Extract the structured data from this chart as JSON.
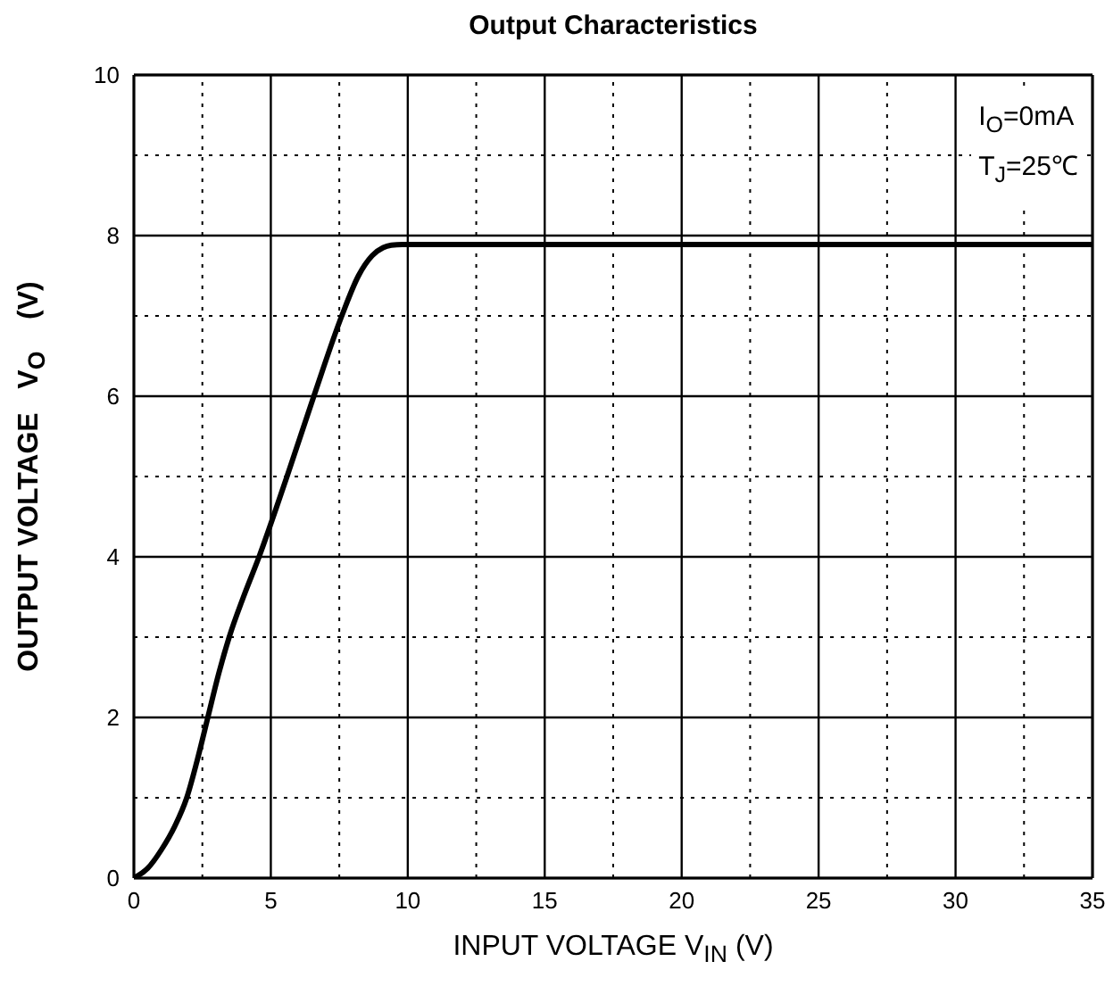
{
  "chart_data": {
    "type": "line",
    "title": "Output  Characteristics",
    "xlabel": "INPUT VOLTAGE    V$_{IN}$    (V)",
    "ylabel": "OUTPUT VOLTAGE   V$_{O}$    (V)",
    "annotations": [
      "I$_{O}$=0mA",
      "T$_{J}$=25℃"
    ],
    "x": [
      0,
      0.5,
      1,
      1.5,
      1.93,
      2.3,
      2.7,
      3.1,
      3.48,
      4.0,
      4.57,
      5.59,
      6.57,
      7.59,
      8.2,
      8.7,
      9.1,
      9.4,
      9.8,
      12,
      20,
      35
    ],
    "series": [
      {
        "color": "#000000",
        "values": [
          0,
          0.12,
          0.35,
          0.65,
          1.0,
          1.45,
          2.0,
          2.55,
          3.0,
          3.5,
          4.0,
          5.0,
          6.0,
          7.0,
          7.5,
          7.75,
          7.85,
          7.88,
          7.89,
          7.89,
          7.89,
          7.89
        ]
      }
    ],
    "xlim": [
      0,
      35
    ],
    "ylim": [
      0,
      10
    ],
    "xticks": [
      0,
      {
        "value": 2.5,
        "label": null
      },
      5,
      {
        "value": 7.5,
        "label": null
      },
      10,
      {
        "value": 12.5,
        "label": null
      },
      15,
      {
        "value": 17.5,
        "label": null
      },
      20,
      {
        "value": 22.5,
        "label": null
      },
      25,
      {
        "value": 27.5,
        "label": null
      },
      30,
      {
        "value": 32.5,
        "label": null
      },
      35
    ],
    "yticks": [
      0,
      {
        "value": 1,
        "label": null
      },
      2,
      {
        "value": 3,
        "label": null
      },
      4,
      {
        "value": 5,
        "label": null
      },
      6,
      {
        "value": 7,
        "label": null
      },
      8,
      {
        "value": 9,
        "label": null
      },
      10
    ],
    "grid": true,
    "marker": "none",
    "line_style": "solid"
  }
}
